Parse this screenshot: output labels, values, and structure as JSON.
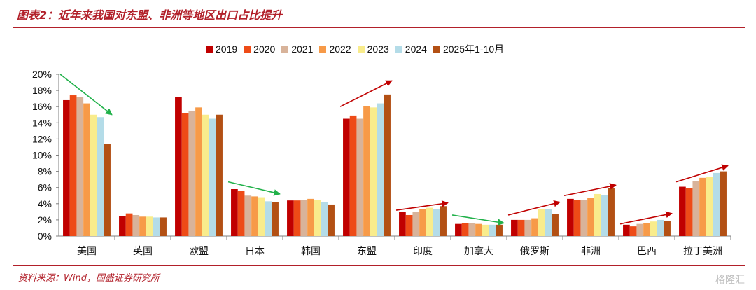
{
  "header": {
    "title": "图表2：近年来我国对东盟、非洲等地区出口占比提升"
  },
  "footer": {
    "source": "资料来源：Wind，国盛证券研究所",
    "watermark": "格隆汇"
  },
  "colors": {
    "accent": "#b2202a",
    "arrow_up": "#c00000",
    "arrow_down": "#21b14a"
  },
  "chart_data": {
    "type": "bar",
    "categories": [
      "美国",
      "英国",
      "欧盟",
      "日本",
      "韩国",
      "东盟",
      "印度",
      "加拿大",
      "俄罗斯",
      "非洲",
      "巴西",
      "拉丁美洲"
    ],
    "series": [
      {
        "name": "2019",
        "color": "#c00000",
        "values": [
          16.8,
          2.5,
          17.2,
          5.8,
          4.4,
          14.5,
          3.0,
          1.5,
          2.0,
          4.6,
          1.4,
          6.1
        ]
      },
      {
        "name": "2020",
        "color": "#ee4b17",
        "values": [
          17.4,
          2.8,
          15.2,
          5.6,
          4.4,
          14.9,
          2.6,
          1.6,
          2.0,
          4.5,
          1.2,
          5.9
        ]
      },
      {
        "name": "2021",
        "color": "#d8b39a",
        "values": [
          17.2,
          2.6,
          15.5,
          5.0,
          4.5,
          14.5,
          3.0,
          1.6,
          2.0,
          4.5,
          1.5,
          6.8
        ]
      },
      {
        "name": "2022",
        "color": "#f79a48",
        "values": [
          16.4,
          2.4,
          15.9,
          4.9,
          4.6,
          16.1,
          3.3,
          1.5,
          2.2,
          4.7,
          1.6,
          7.2
        ]
      },
      {
        "name": "2023",
        "color": "#f9ec8c",
        "values": [
          15.0,
          2.4,
          15.0,
          4.8,
          4.5,
          15.9,
          3.5,
          1.4,
          3.3,
          5.2,
          1.8,
          7.3
        ]
      },
      {
        "name": "2024",
        "color": "#b4dce8",
        "values": [
          14.7,
          2.3,
          14.5,
          4.3,
          4.2,
          16.4,
          3.3,
          1.4,
          3.3,
          5.1,
          2.0,
          7.8
        ]
      },
      {
        "name": "2025年1-10月",
        "color": "#b35014",
        "values": [
          11.4,
          2.3,
          15.0,
          4.2,
          3.9,
          17.5,
          3.7,
          1.4,
          2.7,
          5.9,
          1.9,
          8.0
        ]
      }
    ],
    "yticks": [
      "0%",
      "2%",
      "4%",
      "6%",
      "8%",
      "10%",
      "12%",
      "14%",
      "16%",
      "18%",
      "20%"
    ],
    "ylim": [
      0,
      20
    ],
    "grid": false,
    "legend_position": "top",
    "trend_arrows": [
      {
        "category": "美国",
        "direction": "down",
        "from": 20.0,
        "to": 15.0
      },
      {
        "category": "日本",
        "direction": "down",
        "from": 6.7,
        "to": 5.2
      },
      {
        "category": "东盟",
        "direction": "up",
        "from": 16.0,
        "to": 19.2
      },
      {
        "category": "印度",
        "direction": "up",
        "from": 3.2,
        "to": 4.1
      },
      {
        "category": "加拿大",
        "direction": "down",
        "from": 2.6,
        "to": 1.6
      },
      {
        "category": "俄罗斯",
        "direction": "up",
        "from": 2.6,
        "to": 4.2
      },
      {
        "category": "非洲",
        "direction": "up",
        "from": 5.0,
        "to": 6.3
      },
      {
        "category": "巴西",
        "direction": "up",
        "from": 1.5,
        "to": 2.8
      },
      {
        "category": "拉丁美洲",
        "direction": "up",
        "from": 6.7,
        "to": 8.7
      }
    ]
  }
}
